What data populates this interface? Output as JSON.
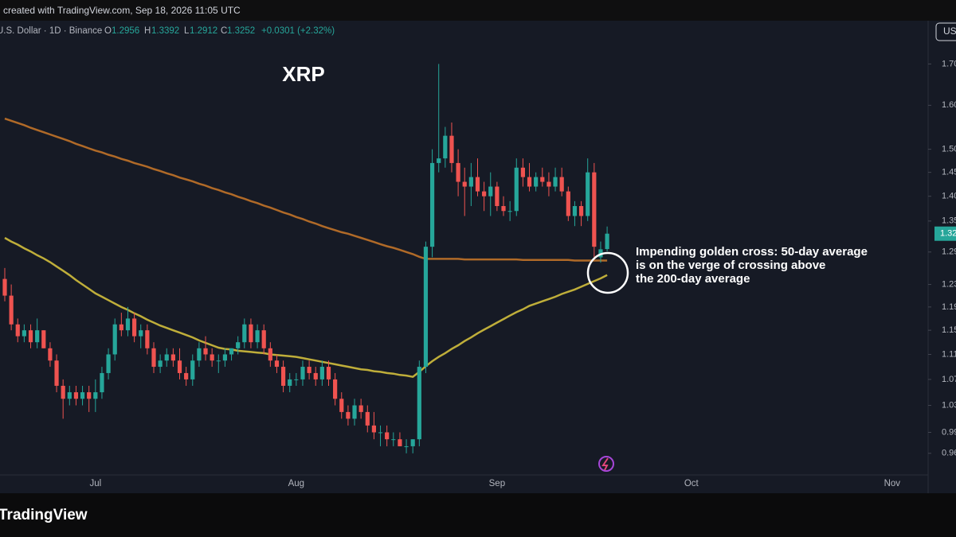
{
  "chart_data": {
    "type": "candlestick",
    "caption": "created with TradingView.com, Sep 18, 2026 11:05 UTC",
    "symbol": "U.S. Dollar · 1D · Binance",
    "ohlc_labels": [
      "O",
      "H",
      "L",
      "C"
    ],
    "change": "+0.0301 (+2.32%)",
    "currency": "USD",
    "title": "XRP",
    "annotation": [
      "Impending golden cross: 50-day average",
      "is on the verge of crossing above",
      "the 200-day average"
    ],
    "brand": "TradingView",
    "log_scale": true,
    "grid": false,
    "up_color": "#26a69a",
    "down_color": "#ef5350",
    "ylim": [
      0.93,
      1.82
    ],
    "yticks": [
      {
        "value": 1.7,
        "label": "1.70"
      },
      {
        "value": 1.6,
        "label": "1.60"
      },
      {
        "value": 1.5,
        "label": "1.50"
      },
      1.45,
      {
        "value": 1.4,
        "label": "1.40"
      },
      1.35,
      1.29,
      1.23,
      1.19,
      1.15,
      1.11,
      1.07,
      1.03,
      0.99,
      0.96
    ],
    "categories": [
      null,
      null,
      null,
      null,
      null,
      null,
      null,
      null,
      null,
      null,
      null,
      null,
      null,
      null,
      "Jul",
      null,
      null,
      null,
      null,
      null,
      null,
      null,
      null,
      null,
      null,
      null,
      null,
      null,
      null,
      null,
      null,
      null,
      null,
      null,
      null,
      null,
      null,
      null,
      null,
      null,
      null,
      null,
      null,
      null,
      null,
      "Aug",
      null,
      null,
      null,
      null,
      null,
      null,
      null,
      null,
      null,
      null,
      null,
      null,
      null,
      null,
      null,
      null,
      null,
      null,
      null,
      null,
      null,
      null,
      null,
      null,
      null,
      null,
      null,
      null,
      null,
      null,
      "Sep",
      null,
      null,
      null,
      null,
      null,
      null,
      null,
      null,
      null,
      null,
      null,
      null,
      null,
      null,
      null,
      null,
      null,
      null,
      null,
      null,
      null,
      null,
      null,
      null,
      null,
      null,
      null,
      null,
      null,
      "Oct",
      null,
      null,
      null,
      null,
      null,
      null,
      null,
      null,
      null,
      null,
      null,
      null,
      null,
      null,
      null,
      null,
      null,
      null,
      null,
      null,
      null,
      null,
      null,
      null,
      null,
      null,
      null,
      null,
      null,
      null,
      "Nov"
    ],
    "open": [
      1.24,
      1.21,
      1.16,
      1.14,
      1.15,
      1.13,
      1.15,
      1.12,
      1.1,
      1.06,
      1.04,
      1.05,
      1.04,
      1.05,
      1.04,
      1.05,
      1.08,
      1.11,
      1.16,
      1.15,
      1.17,
      1.14,
      1.15,
      1.12,
      1.09,
      1.1,
      1.11,
      1.1,
      1.08,
      1.07,
      1.1,
      1.12,
      1.11,
      1.1,
      1.1,
      1.11,
      1.12,
      1.13,
      1.16,
      1.13,
      1.15,
      1.12,
      1.1,
      1.09,
      1.06,
      1.07,
      1.07,
      1.09,
      1.08,
      1.07,
      1.09,
      1.07,
      1.04,
      1.02,
      1.01,
      1.03,
      1.02,
      1.0,
      0.99,
      0.99,
      0.98,
      0.98,
      0.97,
      0.97,
      0.98,
      1.09,
      1.3,
      1.47,
      1.48,
      1.53,
      1.47,
      1.43,
      1.42,
      1.44,
      1.41,
      1.4,
      1.42,
      1.38,
      1.37,
      1.37,
      1.46,
      1.44,
      1.42,
      1.44,
      1.43,
      1.42,
      1.44,
      1.41,
      1.36,
      1.38,
      1.36,
      1.45,
      1.28,
      1.2956,
      null,
      null,
      null,
      null,
      null,
      null,
      null,
      null,
      null,
      null,
      null,
      null,
      null,
      null,
      null,
      null,
      null,
      null,
      null,
      null,
      null,
      null,
      null,
      null,
      null,
      null,
      null,
      null,
      null,
      null,
      null,
      null,
      null,
      null,
      null,
      null,
      null,
      null,
      null,
      null,
      null,
      null,
      null,
      null
    ],
    "high": [
      1.26,
      1.23,
      1.17,
      1.16,
      1.16,
      1.17,
      1.15,
      1.13,
      1.11,
      1.07,
      1.06,
      1.06,
      1.06,
      1.06,
      1.07,
      1.09,
      1.12,
      1.17,
      1.18,
      1.19,
      1.18,
      1.16,
      1.16,
      1.13,
      1.11,
      1.12,
      1.12,
      1.12,
      1.09,
      1.11,
      1.13,
      1.14,
      1.12,
      1.11,
      1.12,
      1.12,
      1.14,
      1.17,
      1.17,
      1.16,
      1.16,
      1.13,
      1.11,
      1.1,
      1.08,
      1.08,
      1.1,
      1.1,
      1.09,
      1.1,
      1.1,
      1.08,
      1.05,
      1.03,
      1.04,
      1.04,
      1.03,
      1.02,
      1.0,
      1.0,
      0.99,
      0.99,
      0.98,
      0.98,
      1.1,
      1.31,
      1.5,
      1.7,
      1.55,
      1.56,
      1.5,
      1.46,
      1.47,
      1.48,
      1.43,
      1.45,
      1.43,
      1.4,
      1.39,
      1.48,
      1.48,
      1.47,
      1.45,
      1.46,
      1.45,
      1.46,
      1.46,
      1.42,
      1.39,
      1.39,
      1.48,
      1.47,
      1.31,
      1.3392,
      null,
      null,
      null,
      null,
      null,
      null,
      null,
      null,
      null,
      null,
      null,
      null,
      null,
      null,
      null,
      null,
      null,
      null,
      null,
      null,
      null,
      null,
      null,
      null,
      null,
      null,
      null,
      null,
      null,
      null,
      null,
      null,
      null,
      null,
      null,
      null,
      null,
      null,
      null,
      null,
      null,
      null,
      null,
      null
    ],
    "low": [
      1.2,
      1.15,
      1.13,
      1.13,
      1.12,
      1.12,
      1.12,
      1.09,
      1.05,
      1.01,
      1.03,
      1.03,
      1.03,
      1.02,
      1.02,
      1.04,
      1.07,
      1.1,
      1.14,
      1.14,
      1.13,
      1.12,
      1.11,
      1.08,
      1.08,
      1.09,
      1.09,
      1.07,
      1.06,
      1.06,
      1.09,
      1.1,
      1.09,
      1.08,
      1.09,
      1.1,
      1.11,
      1.12,
      1.12,
      1.12,
      1.11,
      1.09,
      1.08,
      1.05,
      1.05,
      1.06,
      1.06,
      1.07,
      1.06,
      1.06,
      1.06,
      1.03,
      1.01,
      1.0,
      1.0,
      1.01,
      0.99,
      0.98,
      0.97,
      0.97,
      0.97,
      0.97,
      0.96,
      0.96,
      0.97,
      1.08,
      1.28,
      1.45,
      1.46,
      1.45,
      1.4,
      1.36,
      1.38,
      1.4,
      1.37,
      1.36,
      1.37,
      1.36,
      1.35,
      1.36,
      1.42,
      1.41,
      1.41,
      1.42,
      1.4,
      1.41,
      1.4,
      1.35,
      1.34,
      1.34,
      1.35,
      1.28,
      1.27,
      1.2912,
      null,
      null,
      null,
      null,
      null,
      null,
      null,
      null,
      null,
      null,
      null,
      null,
      null,
      null,
      null,
      null,
      null,
      null,
      null,
      null,
      null,
      null,
      null,
      null,
      null,
      null,
      null,
      null,
      null,
      null,
      null,
      null,
      null,
      null,
      null,
      null,
      null,
      null,
      null,
      null,
      null,
      null,
      null,
      null
    ],
    "close": [
      1.21,
      1.16,
      1.14,
      1.15,
      1.13,
      1.15,
      1.12,
      1.1,
      1.06,
      1.04,
      1.05,
      1.04,
      1.05,
      1.04,
      1.05,
      1.08,
      1.11,
      1.16,
      1.15,
      1.17,
      1.14,
      1.15,
      1.12,
      1.09,
      1.1,
      1.11,
      1.1,
      1.08,
      1.07,
      1.1,
      1.12,
      1.11,
      1.1,
      1.1,
      1.11,
      1.12,
      1.13,
      1.16,
      1.13,
      1.15,
      1.12,
      1.1,
      1.09,
      1.06,
      1.07,
      1.07,
      1.09,
      1.08,
      1.07,
      1.09,
      1.07,
      1.04,
      1.02,
      1.01,
      1.03,
      1.02,
      1.0,
      0.99,
      0.99,
      0.98,
      0.98,
      0.97,
      0.97,
      0.98,
      1.09,
      1.3,
      1.47,
      1.48,
      1.53,
      1.47,
      1.43,
      1.42,
      1.44,
      1.41,
      1.4,
      1.42,
      1.38,
      1.37,
      1.37,
      1.46,
      1.44,
      1.42,
      1.44,
      1.43,
      1.42,
      1.44,
      1.41,
      1.36,
      1.38,
      1.36,
      1.45,
      1.3,
      1.2951,
      1.3252,
      null,
      null,
      null,
      null,
      null,
      null,
      null,
      null,
      null,
      null,
      null,
      null,
      null,
      null,
      null,
      null,
      null,
      null,
      null,
      null,
      null,
      null,
      null,
      null,
      null,
      null,
      null,
      null,
      null,
      null,
      null,
      null,
      null,
      null,
      null,
      null,
      null,
      null,
      null,
      null,
      null,
      null,
      null,
      null
    ],
    "moving_averages": [
      {
        "color": "#b06a28",
        "values": [
          1.569,
          1.564,
          1.559,
          1.554,
          1.548,
          1.543,
          1.538,
          1.533,
          1.528,
          1.523,
          1.518,
          1.512,
          1.507,
          1.502,
          1.497,
          1.493,
          1.488,
          1.484,
          1.479,
          1.475,
          1.47,
          1.466,
          1.462,
          1.457,
          1.453,
          1.448,
          1.444,
          1.439,
          1.435,
          1.431,
          1.426,
          1.422,
          1.417,
          1.413,
          1.408,
          1.404,
          1.399,
          1.395,
          1.39,
          1.386,
          1.381,
          1.377,
          1.372,
          1.367,
          1.363,
          1.358,
          1.354,
          1.349,
          1.345,
          1.34,
          1.336,
          1.332,
          1.328,
          1.325,
          1.321,
          1.317,
          1.313,
          1.309,
          1.305,
          1.301,
          1.298,
          1.294,
          1.29,
          1.286,
          1.281,
          1.277,
          1.277,
          1.277,
          1.277,
          1.277,
          1.277,
          1.276,
          1.276,
          1.276,
          1.276,
          1.276,
          1.276,
          1.276,
          1.276,
          1.276,
          1.275,
          1.275,
          1.275,
          1.275,
          1.275,
          1.275,
          1.275,
          1.275,
          1.274,
          1.274,
          1.274,
          1.274,
          1.274,
          1.274,
          null,
          null,
          null,
          null,
          null,
          null,
          null,
          null,
          null,
          null,
          null,
          null,
          null,
          null,
          null,
          null,
          null,
          null,
          null,
          null,
          null,
          null,
          null,
          null,
          null,
          null,
          null,
          null,
          null,
          null,
          null,
          null,
          null,
          null,
          null,
          null,
          null,
          null,
          null,
          null,
          null,
          null,
          null,
          null
        ]
      },
      {
        "color": "#bfae3a",
        "values": [
          1.317,
          1.31,
          1.304,
          1.297,
          1.291,
          1.284,
          1.278,
          1.271,
          1.263,
          1.255,
          1.247,
          1.238,
          1.23,
          1.222,
          1.214,
          1.208,
          1.202,
          1.196,
          1.19,
          1.185,
          1.179,
          1.174,
          1.168,
          1.163,
          1.158,
          1.154,
          1.15,
          1.146,
          1.142,
          1.138,
          1.133,
          1.129,
          1.125,
          1.121,
          1.119,
          1.118,
          1.116,
          1.115,
          1.114,
          1.113,
          1.112,
          1.11,
          1.109,
          1.108,
          1.107,
          1.106,
          1.104,
          1.102,
          1.1,
          1.098,
          1.096,
          1.094,
          1.092,
          1.09,
          1.088,
          1.086,
          1.085,
          1.083,
          1.082,
          1.08,
          1.079,
          1.077,
          1.076,
          1.074,
          1.082,
          1.091,
          1.099,
          1.106,
          1.112,
          1.119,
          1.125,
          1.132,
          1.138,
          1.145,
          1.151,
          1.157,
          1.163,
          1.169,
          1.175,
          1.181,
          1.186,
          1.192,
          1.196,
          1.2,
          1.204,
          1.208,
          1.213,
          1.217,
          1.221,
          1.226,
          1.231,
          1.236,
          1.241,
          1.247,
          null,
          null,
          null,
          null,
          null,
          null,
          null,
          null,
          null,
          null,
          null,
          null,
          null,
          null,
          null,
          null,
          null,
          null,
          null,
          null,
          null,
          null,
          null,
          null,
          null,
          null,
          null,
          null,
          null,
          null,
          null,
          null,
          null,
          null,
          null,
          null,
          null,
          null,
          null,
          null,
          null,
          null,
          null,
          null
        ]
      }
    ]
  }
}
